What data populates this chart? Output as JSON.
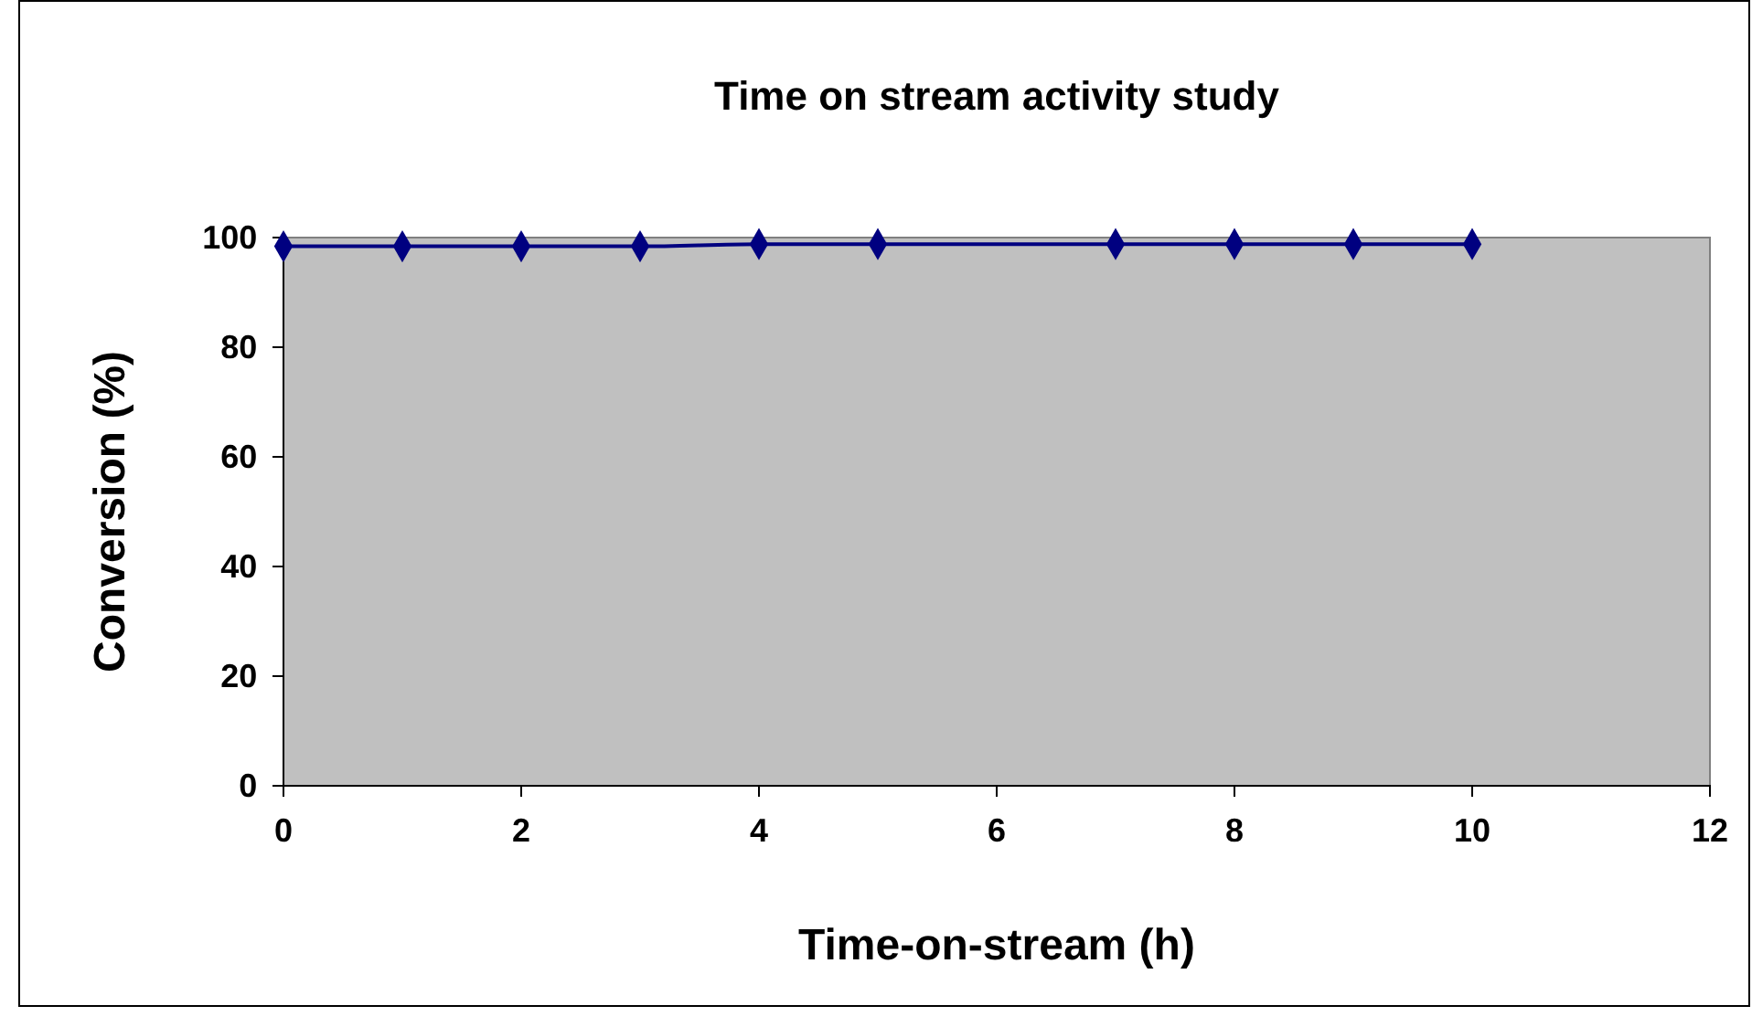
{
  "chart_data": {
    "type": "line",
    "title": "Time on stream activity study",
    "xlabel": "Time-on-stream (h)",
    "ylabel": "Conversion (%)",
    "x": [
      0,
      1,
      2,
      3,
      4,
      5,
      7,
      8,
      9,
      10
    ],
    "series": [
      {
        "color": "#000080",
        "values": [
          98.4,
          98.4,
          98.4,
          98.4,
          98.8,
          98.8,
          98.8,
          98.8,
          98.8,
          98.8
        ]
      }
    ],
    "xlim": [
      0,
      12
    ],
    "xticks": [
      0,
      2,
      4,
      6,
      8,
      10,
      12
    ],
    "ylim": [
      0,
      100
    ],
    "yticks": [
      0,
      20,
      40,
      60,
      80,
      100
    ],
    "grid": false,
    "marker": "diamond",
    "line_style": "solid"
  }
}
